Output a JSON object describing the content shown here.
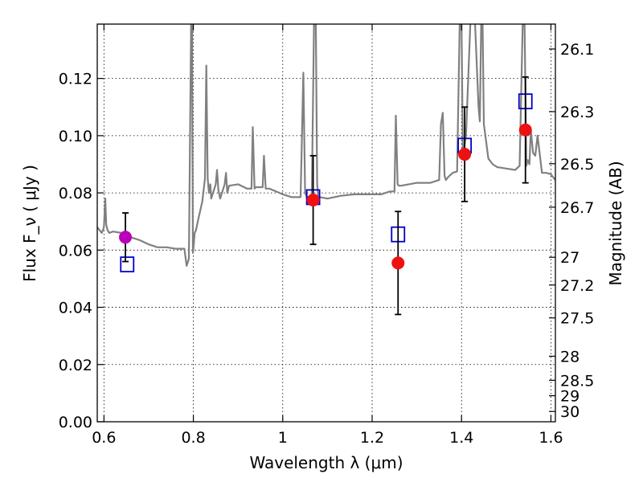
{
  "chart_data": {
    "type": "scatter",
    "title": "",
    "xlabel": "Wavelength  λ (μm)",
    "ylabel": "Flux  F_ν  ( μJy )",
    "y2label": "Magnitude (AB)",
    "xlim": [
      0.585,
      1.61
    ],
    "ylim": [
      0.0,
      0.139
    ],
    "grid": true,
    "x_ticks": [
      0.6,
      0.8,
      1.0,
      1.2,
      1.4,
      1.6
    ],
    "x_tick_labels": [
      "0.6",
      "0.8",
      "1",
      "1.2",
      "1.4",
      "1.6"
    ],
    "y_ticks": [
      0.0,
      0.02,
      0.04,
      0.06,
      0.08,
      0.1,
      0.12
    ],
    "y_tick_labels": [
      "0.00",
      "0.02",
      "0.04",
      "0.06",
      "0.08",
      "0.10",
      "0.12"
    ],
    "mag_ticks": [
      {
        "label": "26.1",
        "flux": 0.1303
      },
      {
        "label": "26.3",
        "flux": 0.1084
      },
      {
        "label": "26.5",
        "flux": 0.0902
      },
      {
        "label": "26.7",
        "flux": 0.075
      },
      {
        "label": "27",
        "flux": 0.0575
      },
      {
        "label": "27.2",
        "flux": 0.0478
      },
      {
        "label": "27.5",
        "flux": 0.0363
      },
      {
        "label": "28",
        "flux": 0.0229
      },
      {
        "label": "28.5",
        "flux": 0.0145
      },
      {
        "label": "29",
        "flux": 0.0091
      },
      {
        "label": "30",
        "flux": 0.0036
      }
    ],
    "series": [
      {
        "name": "",
        "kind": "line",
        "color": "#808080",
        "x": [
          0.585,
          0.595,
          0.6,
          0.603,
          0.605,
          0.608,
          0.612,
          0.62,
          0.64,
          0.66,
          0.68,
          0.7,
          0.72,
          0.74,
          0.76,
          0.78,
          0.785,
          0.79,
          0.795,
          0.797,
          0.799,
          0.801,
          0.803,
          0.806,
          0.81,
          0.82,
          0.826,
          0.829,
          0.832,
          0.835,
          0.838,
          0.84,
          0.85,
          0.853,
          0.856,
          0.86,
          0.87,
          0.873,
          0.876,
          0.88,
          0.9,
          0.92,
          0.93,
          0.933,
          0.937,
          0.94,
          0.955,
          0.958,
          0.962,
          0.97,
          1.0,
          1.02,
          1.04,
          1.046,
          1.05,
          1.054,
          1.06,
          1.065,
          1.07,
          1.074,
          1.077,
          1.08,
          1.083,
          1.1,
          1.13,
          1.16,
          1.19,
          1.22,
          1.24,
          1.25,
          1.253,
          1.257,
          1.26,
          1.265,
          1.3,
          1.33,
          1.35,
          1.354,
          1.358,
          1.362,
          1.365,
          1.37,
          1.38,
          1.39,
          1.396,
          1.4,
          1.403,
          1.407,
          1.41,
          1.42,
          1.43,
          1.438,
          1.441,
          1.444,
          1.447,
          1.45,
          1.46,
          1.47,
          1.48,
          1.5,
          1.52,
          1.53,
          1.537,
          1.541,
          1.545,
          1.548,
          1.552,
          1.555,
          1.56,
          1.565,
          1.57,
          1.58,
          1.59,
          1.6,
          1.61
        ],
        "y": [
          0.068,
          0.066,
          0.068,
          0.078,
          0.069,
          0.067,
          0.066,
          0.0665,
          0.066,
          0.0645,
          0.0635,
          0.062,
          0.061,
          0.061,
          0.0605,
          0.0605,
          0.0545,
          0.057,
          0.14,
          0.14,
          0.059,
          0.062,
          0.066,
          0.067,
          0.07,
          0.077,
          0.085,
          0.1245,
          0.085,
          0.08,
          0.083,
          0.078,
          0.083,
          0.088,
          0.081,
          0.078,
          0.083,
          0.087,
          0.08,
          0.0825,
          0.083,
          0.0815,
          0.0815,
          0.103,
          0.0815,
          0.082,
          0.082,
          0.093,
          0.0815,
          0.0815,
          0.0795,
          0.0785,
          0.0785,
          0.122,
          0.08,
          0.0785,
          0.0785,
          0.078,
          0.14,
          0.14,
          0.083,
          0.0775,
          0.0785,
          0.078,
          0.079,
          0.0795,
          0.0795,
          0.0795,
          0.0805,
          0.0805,
          0.107,
          0.083,
          0.0825,
          0.0825,
          0.0835,
          0.0835,
          0.0845,
          0.104,
          0.108,
          0.086,
          0.0845,
          0.0855,
          0.087,
          0.0875,
          0.14,
          0.14,
          0.092,
          0.097,
          0.1,
          0.14,
          0.14,
          0.11,
          0.105,
          0.14,
          0.14,
          0.104,
          0.092,
          0.09,
          0.089,
          0.0885,
          0.088,
          0.0895,
          0.14,
          0.14,
          0.0895,
          0.0915,
          0.09,
          0.102,
          0.094,
          0.093,
          0.1,
          0.087,
          0.087,
          0.0865,
          0.0845
        ]
      },
      {
        "name": "",
        "kind": "markers-square",
        "color": "#0000cc",
        "x": [
          0.652,
          1.068,
          1.258,
          1.407,
          1.543
        ],
        "y": [
          0.055,
          0.0785,
          0.0655,
          0.0965,
          0.112
        ]
      },
      {
        "name": "",
        "kind": "markers-circle-errorbar",
        "x": [
          0.648,
          1.068,
          1.258,
          1.407,
          1.543
        ],
        "y": [
          0.0645,
          0.0775,
          0.0555,
          0.0935,
          0.102
        ],
        "yerr": [
          0.0085,
          0.0155,
          0.018,
          0.0165,
          0.0185
        ],
        "colors": [
          "#bb00bb",
          "#ee1111",
          "#ee1111",
          "#ee1111",
          "#ee1111"
        ]
      }
    ]
  }
}
